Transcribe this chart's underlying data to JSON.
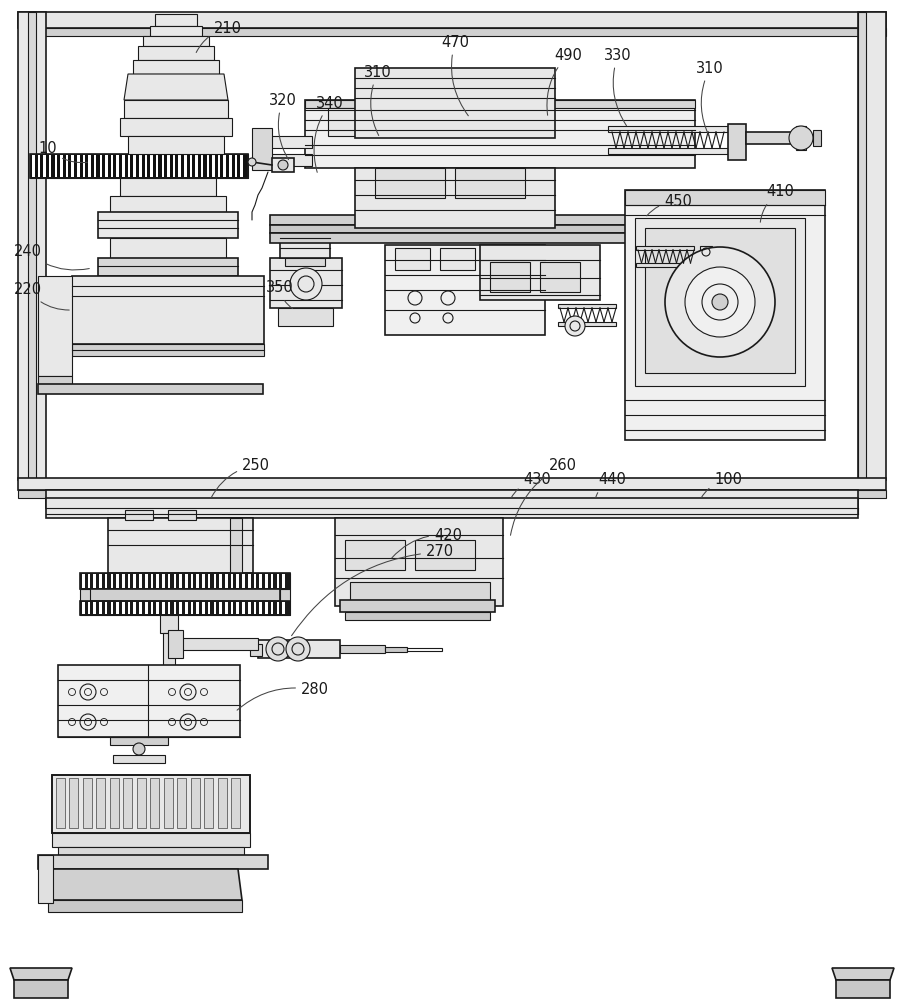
{
  "bg_color": "#ffffff",
  "lc": "#1a1a1a",
  "annotations": [
    [
      "10",
      48,
      148,
      90,
      162
    ],
    [
      "210",
      228,
      28,
      195,
      55
    ],
    [
      "320",
      283,
      100,
      290,
      162
    ],
    [
      "340",
      330,
      103,
      318,
      175
    ],
    [
      "310",
      378,
      72,
      380,
      138
    ],
    [
      "470",
      455,
      42,
      470,
      118
    ],
    [
      "490",
      568,
      55,
      548,
      118
    ],
    [
      "330",
      618,
      55,
      628,
      128
    ],
    [
      "310",
      710,
      68,
      710,
      138
    ],
    [
      "450",
      678,
      202,
      645,
      218
    ],
    [
      "410",
      780,
      192,
      760,
      225
    ],
    [
      "350",
      280,
      288,
      295,
      310
    ],
    [
      "240",
      28,
      252,
      92,
      268
    ],
    [
      "220",
      28,
      290,
      72,
      310
    ],
    [
      "430",
      537,
      480,
      510,
      500
    ],
    [
      "260",
      563,
      465,
      510,
      538
    ],
    [
      "440",
      612,
      480,
      595,
      500
    ],
    [
      "100",
      728,
      480,
      700,
      500
    ],
    [
      "420",
      448,
      535,
      390,
      560
    ],
    [
      "270",
      440,
      552,
      290,
      638
    ],
    [
      "250",
      256,
      465,
      210,
      500
    ],
    [
      "280",
      315,
      690,
      235,
      712
    ]
  ]
}
